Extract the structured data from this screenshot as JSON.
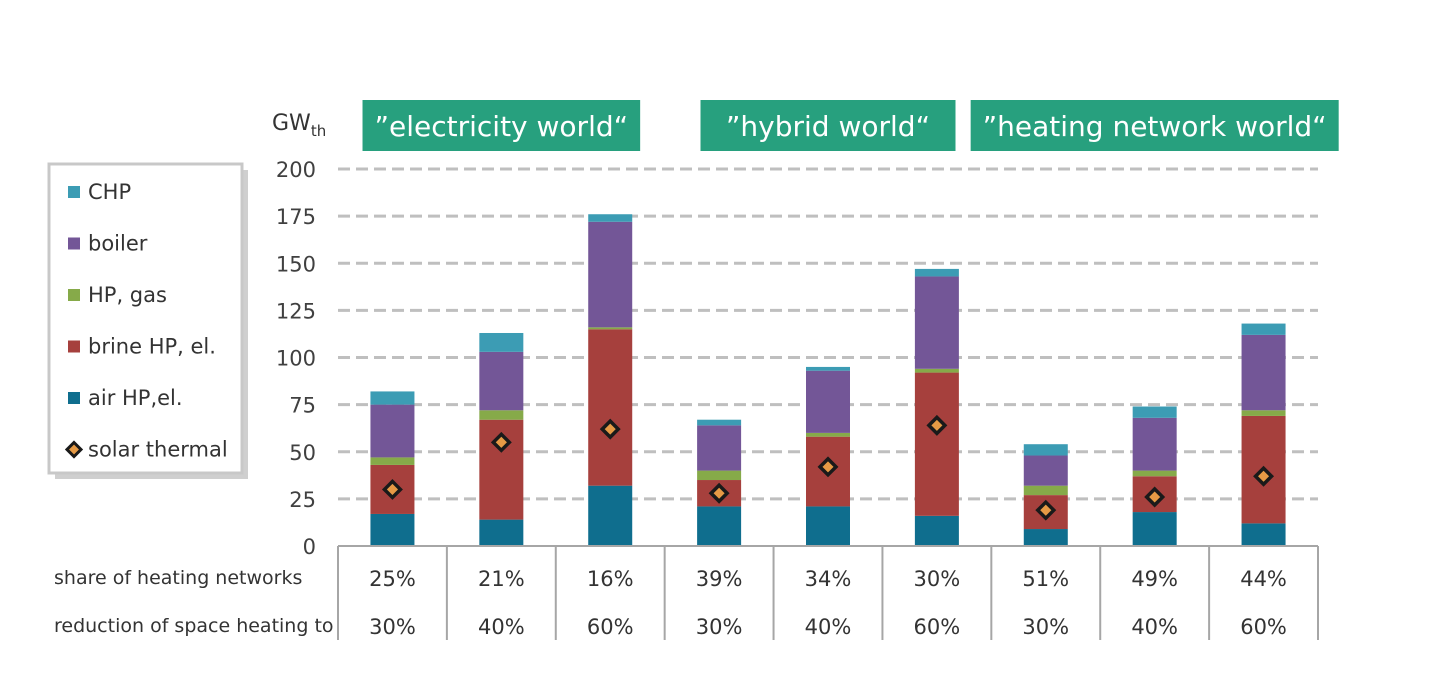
{
  "chart_data": {
    "type": "bar",
    "stacked": true,
    "ylabel": "GWth",
    "ylim": [
      0,
      200
    ],
    "yticks": [
      0,
      25,
      50,
      75,
      100,
      125,
      150,
      175,
      200
    ],
    "grid": true,
    "legend_position": "left",
    "scenarios": [
      {
        "label": "”electricity world“",
        "columns": [
          0,
          1,
          2
        ]
      },
      {
        "label": "”hybrid world“",
        "columns": [
          3,
          4,
          5
        ]
      },
      {
        "label": "”heating network world“",
        "columns": [
          6,
          7,
          8
        ]
      }
    ],
    "rows": [
      {
        "label": "share of heating networks",
        "values": [
          "25%",
          "21%",
          "16%",
          "39%",
          "34%",
          "30%",
          "51%",
          "49%",
          "44%"
        ]
      },
      {
        "label": "reduction of space heating to",
        "values": [
          "30%",
          "40%",
          "60%",
          "30%",
          "40%",
          "60%",
          "30%",
          "40%",
          "60%"
        ]
      }
    ],
    "series": [
      {
        "name": "air HP,el.",
        "color": "#0f6e8e",
        "values": [
          17,
          14,
          32,
          21,
          21,
          16,
          9,
          18,
          12
        ]
      },
      {
        "name": "brine HP, el.",
        "color": "#a6403d",
        "values": [
          26,
          53,
          83,
          14,
          37,
          76,
          18,
          19,
          57
        ]
      },
      {
        "name": "HP, gas",
        "color": "#86aa49",
        "values": [
          4,
          5,
          1,
          5,
          2,
          2,
          5,
          3,
          3
        ]
      },
      {
        "name": "boiler",
        "color": "#735697",
        "values": [
          28,
          31,
          56,
          24,
          33,
          49,
          16,
          28,
          40
        ]
      },
      {
        "name": "CHP",
        "color": "#3c9cb4",
        "values": [
          7,
          10,
          4,
          3,
          2,
          4,
          6,
          6,
          6
        ]
      }
    ],
    "markers": {
      "name": "solar thermal",
      "values": [
        30,
        55,
        62,
        28,
        42,
        64,
        19,
        26,
        37
      ]
    },
    "legend_order": [
      "CHP",
      "boiler",
      "HP, gas",
      "brine HP, el.",
      "air HP,el.",
      "solar thermal"
    ],
    "banner_color": "#27a07e"
  }
}
